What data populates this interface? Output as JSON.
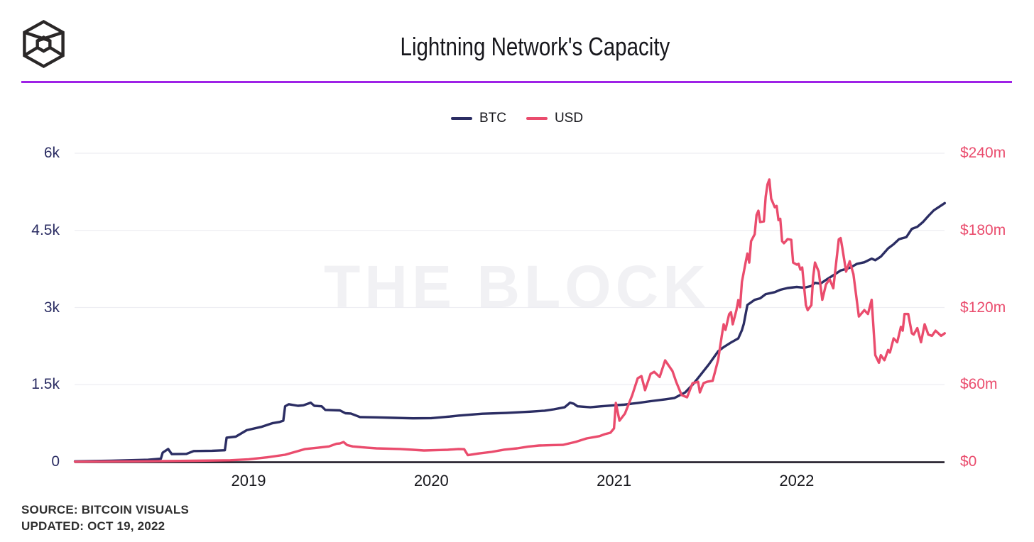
{
  "header": {
    "title": "Lightning Network's Capacity",
    "logo": "the-block-cube-logo"
  },
  "watermark": "THE BLOCK",
  "footer": {
    "source": "SOURCE: BITCOIN VISUALS",
    "updated": "UPDATED: OCT 19, 2022"
  },
  "colors": {
    "btc_line": "#2b2d63",
    "usd_line": "#ea4c6d",
    "header_rule": "#9e22e6",
    "grid": "#ededf2",
    "axis": "#181321",
    "watermark": "#f1f1f4",
    "title_text": "#17171c",
    "footer_text": "#2f2f2f"
  },
  "chart_data": {
    "type": "line",
    "title": "Lightning Network's Capacity",
    "grid": "horizontal",
    "legend_position": "top-center",
    "x_axis": {
      "label": "",
      "range": [
        2018.05,
        2022.85
      ],
      "ticks": [
        {
          "label": "2019",
          "t": 2019
        },
        {
          "label": "2020",
          "t": 2020
        },
        {
          "label": "2021",
          "t": 2021
        },
        {
          "label": "2022",
          "t": 2022
        }
      ]
    },
    "y_left": {
      "unit": "BTC",
      "range": [
        0,
        6000
      ],
      "ticks": [
        {
          "label": "6k",
          "v": 6000
        },
        {
          "label": "4.5k",
          "v": 4500
        },
        {
          "label": "3k",
          "v": 3000
        },
        {
          "label": "1.5k",
          "v": 1500
        },
        {
          "label": "0",
          "v": 0
        }
      ]
    },
    "y_right": {
      "unit": "USD millions",
      "range": [
        0,
        240
      ],
      "ticks": [
        {
          "label": "$240m",
          "v": 240
        },
        {
          "label": "$180m",
          "v": 180
        },
        {
          "label": "$120m",
          "v": 120
        },
        {
          "label": "$60m",
          "v": 60
        },
        {
          "label": "$0",
          "v": 0
        }
      ]
    },
    "series": [
      {
        "name": "BTC",
        "axis": "left",
        "color": "#2b2d63",
        "points": [
          [
            2018.05,
            10
          ],
          [
            2018.25,
            20
          ],
          [
            2018.45,
            40
          ],
          [
            2018.52,
            60
          ],
          [
            2018.53,
            180
          ],
          [
            2018.56,
            250
          ],
          [
            2018.58,
            150
          ],
          [
            2018.66,
            155
          ],
          [
            2018.7,
            210
          ],
          [
            2018.8,
            215
          ],
          [
            2018.87,
            225
          ],
          [
            2018.88,
            470
          ],
          [
            2018.93,
            490
          ],
          [
            2018.99,
            615
          ],
          [
            2019.07,
            680
          ],
          [
            2019.13,
            750
          ],
          [
            2019.17,
            775
          ],
          [
            2019.19,
            800
          ],
          [
            2019.2,
            1080
          ],
          [
            2019.22,
            1120
          ],
          [
            2019.27,
            1090
          ],
          [
            2019.3,
            1100
          ],
          [
            2019.34,
            1150
          ],
          [
            2019.36,
            1090
          ],
          [
            2019.4,
            1080
          ],
          [
            2019.42,
            1010
          ],
          [
            2019.5,
            1000
          ],
          [
            2019.53,
            945
          ],
          [
            2019.56,
            940
          ],
          [
            2019.61,
            870
          ],
          [
            2019.7,
            865
          ],
          [
            2019.8,
            855
          ],
          [
            2019.9,
            845
          ],
          [
            2020.0,
            850
          ],
          [
            2020.1,
            880
          ],
          [
            2020.15,
            900
          ],
          [
            2020.28,
            935
          ],
          [
            2020.41,
            950
          ],
          [
            2020.54,
            975
          ],
          [
            2020.62,
            995
          ],
          [
            2020.67,
            1020
          ],
          [
            2020.73,
            1060
          ],
          [
            2020.76,
            1150
          ],
          [
            2020.78,
            1130
          ],
          [
            2020.8,
            1080
          ],
          [
            2020.87,
            1060
          ],
          [
            2020.93,
            1080
          ],
          [
            2021.0,
            1100
          ],
          [
            2021.05,
            1110
          ],
          [
            2021.13,
            1145
          ],
          [
            2021.2,
            1180
          ],
          [
            2021.28,
            1215
          ],
          [
            2021.33,
            1240
          ],
          [
            2021.39,
            1350
          ],
          [
            2021.43,
            1500
          ],
          [
            2021.46,
            1630
          ],
          [
            2021.52,
            1900
          ],
          [
            2021.57,
            2150
          ],
          [
            2021.6,
            2230
          ],
          [
            2021.64,
            2320
          ],
          [
            2021.68,
            2400
          ],
          [
            2021.7,
            2560
          ],
          [
            2021.71,
            2680
          ],
          [
            2021.73,
            3050
          ],
          [
            2021.77,
            3150
          ],
          [
            2021.8,
            3180
          ],
          [
            2021.83,
            3260
          ],
          [
            2021.88,
            3300
          ],
          [
            2021.91,
            3345
          ],
          [
            2021.95,
            3380
          ],
          [
            2022.0,
            3400
          ],
          [
            2022.04,
            3385
          ],
          [
            2022.08,
            3420
          ],
          [
            2022.1,
            3480
          ],
          [
            2022.13,
            3465
          ],
          [
            2022.17,
            3560
          ],
          [
            2022.21,
            3650
          ],
          [
            2022.24,
            3720
          ],
          [
            2022.28,
            3760
          ],
          [
            2022.3,
            3790
          ],
          [
            2022.33,
            3850
          ],
          [
            2022.37,
            3880
          ],
          [
            2022.41,
            3950
          ],
          [
            2022.43,
            3920
          ],
          [
            2022.46,
            3990
          ],
          [
            2022.5,
            4150
          ],
          [
            2022.53,
            4230
          ],
          [
            2022.56,
            4330
          ],
          [
            2022.6,
            4370
          ],
          [
            2022.63,
            4530
          ],
          [
            2022.66,
            4570
          ],
          [
            2022.69,
            4660
          ],
          [
            2022.72,
            4780
          ],
          [
            2022.75,
            4890
          ],
          [
            2022.78,
            4960
          ],
          [
            2022.81,
            5030
          ]
        ]
      },
      {
        "name": "USD",
        "axis": "right",
        "color": "#ea4c6d",
        "points": [
          [
            2018.05,
            0.1
          ],
          [
            2018.4,
            0.4
          ],
          [
            2018.7,
            0.8
          ],
          [
            2018.9,
            1.2
          ],
          [
            2019.0,
            2
          ],
          [
            2019.1,
            3.5
          ],
          [
            2019.2,
            5.5
          ],
          [
            2019.31,
            10
          ],
          [
            2019.38,
            11
          ],
          [
            2019.44,
            12
          ],
          [
            2019.48,
            14
          ],
          [
            2019.5,
            14.3
          ],
          [
            2019.52,
            15.4
          ],
          [
            2019.54,
            13
          ],
          [
            2019.57,
            12
          ],
          [
            2019.65,
            11
          ],
          [
            2019.7,
            10.5
          ],
          [
            2019.83,
            10
          ],
          [
            2019.9,
            9.4
          ],
          [
            2019.96,
            8.8
          ],
          [
            2020.05,
            9.2
          ],
          [
            2020.09,
            9.4
          ],
          [
            2020.15,
            10
          ],
          [
            2020.18,
            9.8
          ],
          [
            2020.2,
            5.2
          ],
          [
            2020.26,
            6.5
          ],
          [
            2020.33,
            7.7
          ],
          [
            2020.4,
            9.5
          ],
          [
            2020.47,
            10.5
          ],
          [
            2020.53,
            11.8
          ],
          [
            2020.59,
            12.7
          ],
          [
            2020.66,
            13
          ],
          [
            2020.72,
            13.2
          ],
          [
            2020.79,
            15.5
          ],
          [
            2020.85,
            18.2
          ],
          [
            2020.92,
            20
          ],
          [
            2020.95,
            21.5
          ],
          [
            2020.98,
            22.6
          ],
          [
            2021.0,
            26
          ],
          [
            2021.01,
            45.8
          ],
          [
            2021.03,
            32
          ],
          [
            2021.06,
            37.5
          ],
          [
            2021.1,
            51.9
          ],
          [
            2021.13,
            65
          ],
          [
            2021.15,
            66.7
          ],
          [
            2021.17,
            55.7
          ],
          [
            2021.2,
            68.4
          ],
          [
            2021.22,
            70
          ],
          [
            2021.25,
            66
          ],
          [
            2021.28,
            78.9
          ],
          [
            2021.32,
            70.6
          ],
          [
            2021.34,
            62.3
          ],
          [
            2021.37,
            51.9
          ],
          [
            2021.4,
            50.2
          ],
          [
            2021.43,
            61.2
          ],
          [
            2021.46,
            62.3
          ],
          [
            2021.47,
            54
          ],
          [
            2021.49,
            61.2
          ],
          [
            2021.51,
            62.3
          ],
          [
            2021.54,
            63
          ],
          [
            2021.57,
            79.4
          ],
          [
            2021.58,
            88.8
          ],
          [
            2021.59,
            98.2
          ],
          [
            2021.6,
            107
          ],
          [
            2021.61,
            102.6
          ],
          [
            2021.63,
            114.8
          ],
          [
            2021.64,
            116.4
          ],
          [
            2021.65,
            107
          ],
          [
            2021.67,
            118
          ],
          [
            2021.68,
            125.8
          ],
          [
            2021.69,
            120.3
          ],
          [
            2021.7,
            140
          ],
          [
            2021.72,
            155
          ],
          [
            2021.73,
            162
          ],
          [
            2021.74,
            155
          ],
          [
            2021.75,
            171.6
          ],
          [
            2021.77,
            177
          ],
          [
            2021.78,
            192
          ],
          [
            2021.79,
            195.3
          ],
          [
            2021.8,
            186.5
          ],
          [
            2021.82,
            187
          ],
          [
            2021.83,
            206.3
          ],
          [
            2021.84,
            215.7
          ],
          [
            2021.85,
            219.6
          ],
          [
            2021.86,
            204.7
          ],
          [
            2021.88,
            198
          ],
          [
            2021.89,
            199
          ],
          [
            2021.9,
            188
          ],
          [
            2021.91,
            189
          ],
          [
            2021.92,
            171.6
          ],
          [
            2021.93,
            170
          ],
          [
            2021.94,
            171.6
          ],
          [
            2021.95,
            173.2
          ],
          [
            2021.97,
            172.7
          ],
          [
            2021.98,
            155
          ],
          [
            2022.0,
            153.4
          ],
          [
            2022.01,
            154
          ],
          [
            2022.02,
            149.5
          ],
          [
            2022.03,
            151.2
          ],
          [
            2022.05,
            121.9
          ],
          [
            2022.06,
            118
          ],
          [
            2022.08,
            121.9
          ],
          [
            2022.09,
            144
          ],
          [
            2022.1,
            155
          ],
          [
            2022.12,
            148
          ],
          [
            2022.14,
            126
          ],
          [
            2022.16,
            138
          ],
          [
            2022.18,
            142
          ],
          [
            2022.2,
            135
          ],
          [
            2022.23,
            173
          ],
          [
            2022.24,
            174
          ],
          [
            2022.25,
            166
          ],
          [
            2022.27,
            148
          ],
          [
            2022.29,
            156
          ],
          [
            2022.31,
            146
          ],
          [
            2022.34,
            113
          ],
          [
            2022.37,
            118
          ],
          [
            2022.39,
            115
          ],
          [
            2022.41,
            126
          ],
          [
            2022.43,
            83
          ],
          [
            2022.45,
            77
          ],
          [
            2022.46,
            83
          ],
          [
            2022.48,
            79
          ],
          [
            2022.5,
            87
          ],
          [
            2022.51,
            85
          ],
          [
            2022.53,
            96
          ],
          [
            2022.55,
            93
          ],
          [
            2022.57,
            105
          ],
          [
            2022.58,
            102
          ],
          [
            2022.59,
            115
          ],
          [
            2022.61,
            115
          ],
          [
            2022.63,
            100
          ],
          [
            2022.64,
            99
          ],
          [
            2022.66,
            104
          ],
          [
            2022.68,
            93
          ],
          [
            2022.7,
            107
          ],
          [
            2022.72,
            99
          ],
          [
            2022.74,
            98
          ],
          [
            2022.76,
            102
          ],
          [
            2022.79,
            98
          ],
          [
            2022.81,
            100
          ]
        ]
      }
    ]
  }
}
